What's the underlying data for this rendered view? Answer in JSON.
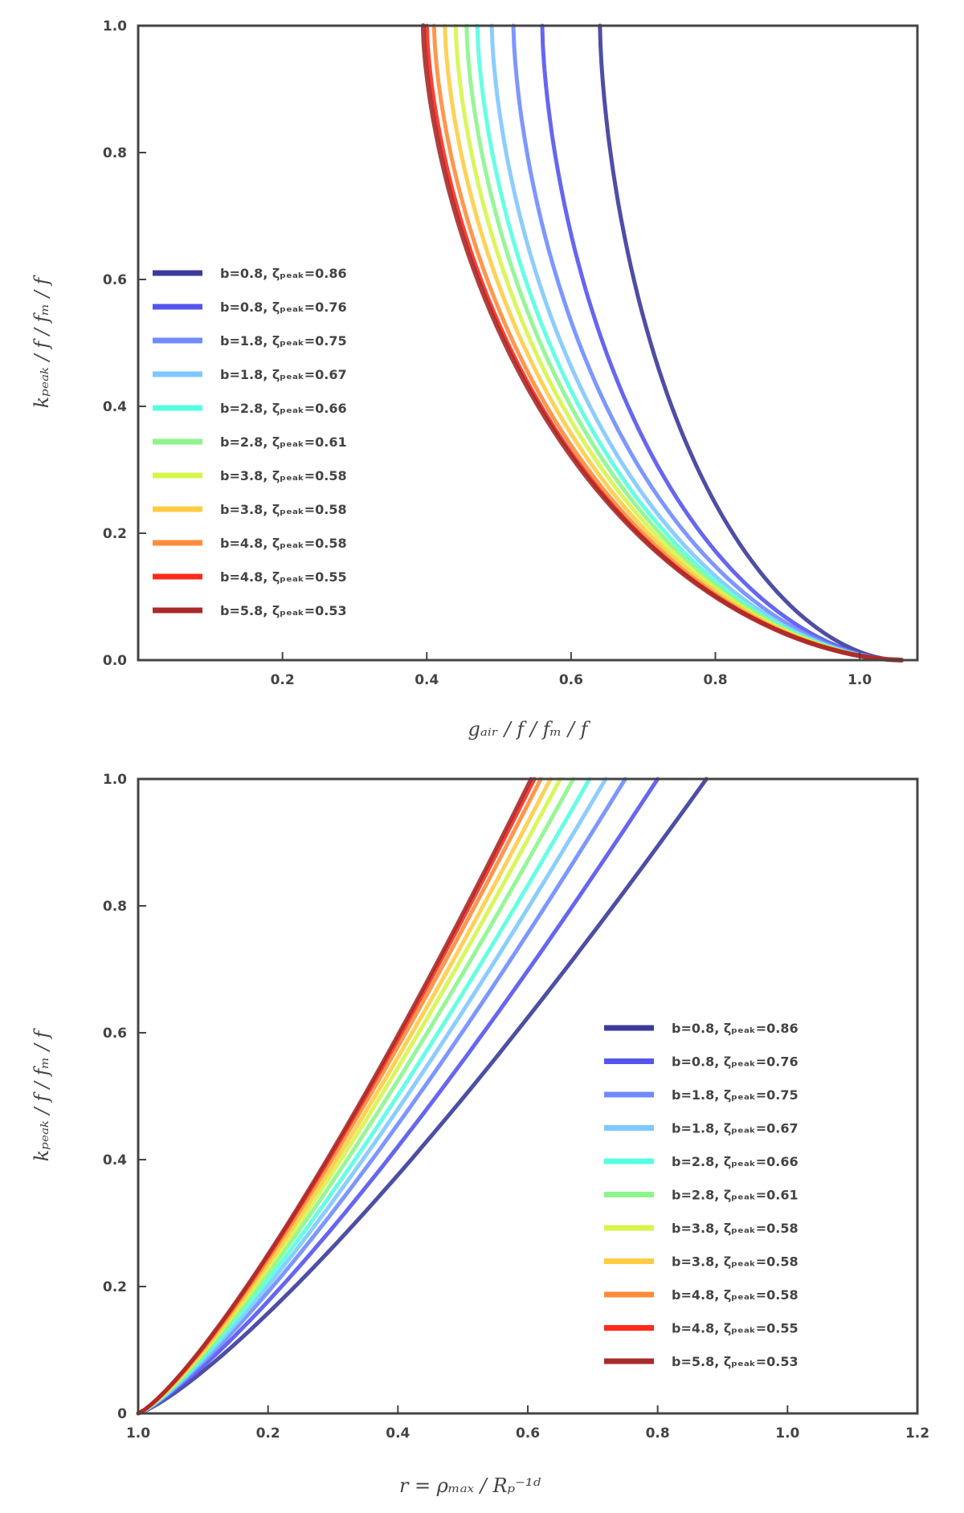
{
  "chart_data": [
    {
      "type": "line",
      "xlabel": "gₐᵢᵣ / f / fₘ / f",
      "ylabel": "kₚₑₐₖ / f / fₘ / f",
      "xlim": [
        0.0,
        1.08
      ],
      "ylim": [
        0.0,
        1.0
      ],
      "xticks": [
        "0.2",
        "0.4",
        "0.6",
        "0.8",
        "1.0"
      ],
      "yticks": [
        "0.0",
        "0.2",
        "0.4",
        "0.6",
        "0.8",
        "1.0"
      ],
      "legend_position": "center-left",
      "series": [
        {
          "label": "b=0.8, ζₚₑₐₖ=0.86",
          "color": "#3b3b9b",
          "x_top": 0.64,
          "x_bottom": 1.052,
          "y_bottom": 0.0
        },
        {
          "label": "b=0.8, ζₚₑₐₖ=0.76",
          "color": "#5555ee",
          "x_top": 0.56,
          "x_bottom": 1.053,
          "y_bottom": 0.0
        },
        {
          "label": "b=1.8, ζₚₑₐₖ=0.75",
          "color": "#6f8cff",
          "x_top": 0.52,
          "x_bottom": 1.054,
          "y_bottom": 0.0
        },
        {
          "label": "b=1.8, ζₚₑₐₖ=0.67",
          "color": "#7fc8ff",
          "x_top": 0.49,
          "x_bottom": 1.054,
          "y_bottom": 0.0
        },
        {
          "label": "b=2.8, ζₚₑₐₖ=0.66",
          "color": "#55ffe0",
          "x_top": 0.47,
          "x_bottom": 1.055,
          "y_bottom": 0.0
        },
        {
          "label": "b=2.8, ζₚₑₐₖ=0.61",
          "color": "#8cf58c",
          "x_top": 0.455,
          "x_bottom": 1.055,
          "y_bottom": 0.0
        },
        {
          "label": "b=3.8, ζₚₑₐₖ=0.58",
          "color": "#d6f54a",
          "x_top": 0.44,
          "x_bottom": 1.056,
          "y_bottom": 0.0
        },
        {
          "label": "b=3.8, ζₚₑₐₖ=0.58",
          "color": "#ffcc44",
          "x_top": 0.425,
          "x_bottom": 1.056,
          "y_bottom": 0.0
        },
        {
          "label": "b=4.8, ζₚₑₐₖ=0.58",
          "color": "#ff8c3a",
          "x_top": 0.41,
          "x_bottom": 1.057,
          "y_bottom": 0.0
        },
        {
          "label": "b=4.8, ζₚₑₐₖ=0.55",
          "color": "#ff2a1a",
          "x_top": 0.4,
          "x_bottom": 1.057,
          "y_bottom": 0.0
        },
        {
          "label": "b=5.8, ζₚₑₐₖ=0.53",
          "color": "#a82a2a",
          "x_top": 0.395,
          "x_bottom": 1.058,
          "y_bottom": 0.0
        }
      ]
    },
    {
      "type": "line",
      "xlabel": "r = ρₘₐₓ / Rₚ⁻¹ᵈ",
      "ylabel": "kₚₑₐₖ / f / fₘ / f",
      "xlim": [
        0.0,
        1.2
      ],
      "ylim": [
        0.0,
        1.0
      ],
      "xticks": [
        "1.0",
        "0.2",
        "0.4",
        "0.6",
        "0.8",
        "1.0",
        "1.2"
      ],
      "yticks": [
        "0",
        "0.2",
        "0.4",
        "0.6",
        "0.8",
        "1.0"
      ],
      "legend_position": "lower-right",
      "series": [
        {
          "label": "b=0.8, ζₚₑₐₖ=0.86",
          "color": "#3b3b9b",
          "x_end": 0.875
        },
        {
          "label": "b=0.8, ζₚₑₐₖ=0.76",
          "color": "#5555ee",
          "x_end": 0.8
        },
        {
          "label": "b=1.8, ζₚₑₐₖ=0.75",
          "color": "#6f8cff",
          "x_end": 0.75
        },
        {
          "label": "b=1.8, ζₚₑₐₖ=0.67",
          "color": "#7fc8ff",
          "x_end": 0.72
        },
        {
          "label": "b=2.8, ζₚₑₐₖ=0.66",
          "color": "#55ffe0",
          "x_end": 0.695
        },
        {
          "label": "b=2.8, ζₚₑₐₖ=0.61",
          "color": "#8cf58c",
          "x_end": 0.67
        },
        {
          "label": "b=3.8, ζₚₑₐₖ=0.58",
          "color": "#d6f54a",
          "x_end": 0.65
        },
        {
          "label": "b=3.8, ζₚₑₐₖ=0.58",
          "color": "#ffcc44",
          "x_end": 0.635
        },
        {
          "label": "b=4.8, ζₚₑₐₖ=0.58",
          "color": "#ff8c3a",
          "x_end": 0.62
        },
        {
          "label": "b=4.8, ζₚₑₐₖ=0.55",
          "color": "#ff2a1a",
          "x_end": 0.61
        },
        {
          "label": "b=5.8, ζₚₑₐₖ=0.53",
          "color": "#a82a2a",
          "x_end": 0.605
        }
      ]
    }
  ]
}
